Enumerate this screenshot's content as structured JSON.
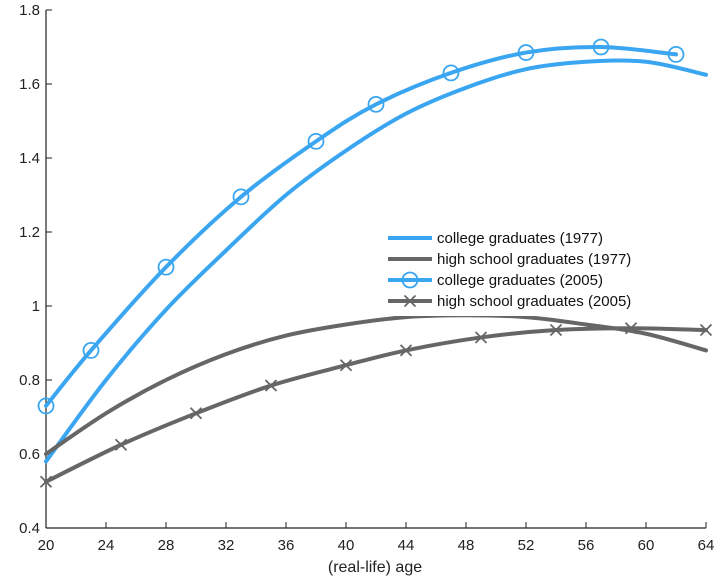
{
  "chart_data": {
    "type": "line",
    "title": "",
    "xlabel": "(real-life) age",
    "ylabel": "",
    "xlim": [
      20,
      64
    ],
    "ylim": [
      0.4,
      1.8
    ],
    "xticks": [
      "20",
      "24",
      "28",
      "32",
      "36",
      "40",
      "44",
      "48",
      "52",
      "56",
      "60",
      "64"
    ],
    "yticks": [
      "0.4",
      "0.6",
      "0.8",
      "1",
      "1.2",
      "1.4",
      "1.6",
      "1.8"
    ],
    "grid": false,
    "legend_position": "center-right",
    "series": [
      {
        "name": "college graduates (1977)",
        "color": "#3aa5f0",
        "marker": "none",
        "x": [
          20,
          24,
          28,
          32,
          36,
          40,
          44,
          48,
          52,
          56,
          60,
          64
        ],
        "y": [
          0.58,
          0.8,
          0.99,
          1.15,
          1.3,
          1.42,
          1.52,
          1.59,
          1.64,
          1.66,
          1.66,
          1.625
        ]
      },
      {
        "name": "high school graduates (1977)",
        "color": "#666666",
        "marker": "none",
        "x": [
          20,
          24,
          28,
          32,
          36,
          40,
          44,
          48,
          52,
          56,
          60,
          64
        ],
        "y": [
          0.6,
          0.71,
          0.8,
          0.87,
          0.92,
          0.95,
          0.97,
          0.975,
          0.97,
          0.95,
          0.925,
          0.88
        ]
      },
      {
        "name": "college graduates (2005)",
        "color": "#3aa5f0",
        "marker": "circle",
        "x": [
          20,
          23,
          28,
          33,
          38,
          42,
          47,
          52,
          57,
          62
        ],
        "y": [
          0.73,
          0.88,
          1.105,
          1.295,
          1.445,
          1.545,
          1.63,
          1.685,
          1.7,
          1.68
        ]
      },
      {
        "name": "high school graduates (2005)",
        "color": "#666666",
        "marker": "x",
        "x": [
          20,
          25,
          30,
          35,
          40,
          44,
          49,
          54,
          59,
          64
        ],
        "y": [
          0.525,
          0.625,
          0.71,
          0.785,
          0.84,
          0.88,
          0.915,
          0.935,
          0.94,
          0.935
        ]
      }
    ]
  }
}
